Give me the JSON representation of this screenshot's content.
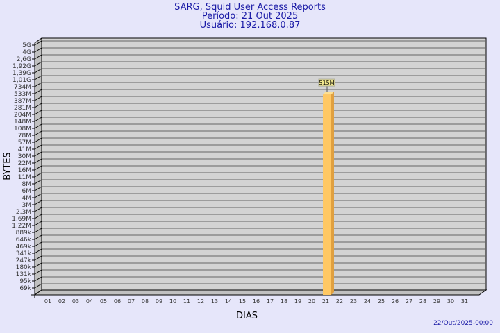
{
  "chart_data": {
    "type": "bar",
    "title": "SARG, Squid User Access Reports",
    "subtitle": [
      "Período: 21 Out 2025",
      "Usuário: 192.168.0.87"
    ],
    "xlabel": "DIAS",
    "ylabel": "BYTES",
    "yscale": "log",
    "y_ticks": [
      "5G",
      "4G",
      "2,6G",
      "1,92G",
      "1,39G",
      "1,01G",
      "734M",
      "533M",
      "387M",
      "281M",
      "204M",
      "148M",
      "108M",
      "78M",
      "57M",
      "41M",
      "30M",
      "22M",
      "16M",
      "11M",
      "8M",
      "6M",
      "4M",
      "3M",
      "2,3M",
      "1,69M",
      "1,22M",
      "889k",
      "646k",
      "469k",
      "341k",
      "247k",
      "180k",
      "131k",
      "95k",
      "69k"
    ],
    "categories": [
      "01",
      "02",
      "03",
      "04",
      "05",
      "06",
      "07",
      "08",
      "09",
      "10",
      "11",
      "12",
      "13",
      "14",
      "15",
      "16",
      "17",
      "18",
      "19",
      "20",
      "21",
      "22",
      "23",
      "24",
      "25",
      "26",
      "27",
      "28",
      "29",
      "30",
      "31"
    ],
    "values": [
      0,
      0,
      0,
      0,
      0,
      0,
      0,
      0,
      0,
      0,
      0,
      0,
      0,
      0,
      0,
      0,
      0,
      0,
      0,
      0,
      515000000,
      0,
      0,
      0,
      0,
      0,
      0,
      0,
      0,
      0,
      0
    ],
    "data_labels": {
      "21": "515M"
    },
    "grid": true,
    "colors": {
      "bar": "#ffc864",
      "bar_side": "#e0a040",
      "wall": "#d3d3d3",
      "background": "#e6e6fa",
      "title": "#1a1aa6"
    }
  },
  "footer_date": "22/Out/2025-00:00"
}
